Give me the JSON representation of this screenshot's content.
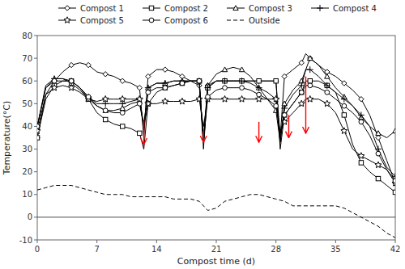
{
  "chart_data": {
    "type": "line",
    "x_label": "Compost time (d)",
    "y_label": "Temperature(°C)",
    "xlim": [
      0,
      42
    ],
    "ylim": [
      -10,
      80
    ],
    "xticks": [
      0,
      7,
      14,
      21,
      28,
      35,
      42
    ],
    "yticks": [
      -10,
      0,
      10,
      20,
      30,
      40,
      50,
      60,
      70,
      80
    ],
    "grid": false,
    "legend": "upper right",
    "reference_line": 0,
    "series": [
      {
        "name": "Compost 1",
        "color": "black",
        "marker": "diamond",
        "line_style": "solid",
        "x": [
          0,
          1,
          2,
          3,
          4,
          5,
          6,
          7,
          8,
          9,
          10,
          11,
          12,
          12.5,
          13,
          14,
          15,
          16,
          17,
          18,
          19,
          19.5,
          20,
          21,
          22,
          23,
          24,
          25,
          26,
          27,
          28,
          28.5,
          29,
          30,
          31,
          31.5,
          32,
          33,
          34,
          35,
          36,
          37,
          38,
          39,
          40,
          41,
          42
        ],
        "values": [
          35,
          54,
          60,
          64,
          67,
          68,
          67,
          64,
          63,
          62,
          60,
          59,
          57,
          35,
          62,
          65,
          65,
          64,
          62,
          60,
          58,
          35,
          58,
          60,
          60,
          60,
          60,
          60,
          60,
          60,
          60,
          35,
          62,
          65,
          68,
          72,
          70,
          67,
          64,
          62,
          59,
          56,
          52,
          45,
          35,
          25,
          15
        ]
      },
      {
        "name": "Compost 2",
        "color": "black",
        "marker": "square",
        "line_style": "solid",
        "x": [
          0,
          1,
          2,
          3,
          4,
          5,
          6,
          7,
          8,
          9,
          10,
          11,
          12,
          12.5,
          13,
          14,
          15,
          16,
          17,
          18,
          19,
          19.5,
          20,
          21,
          22,
          23,
          24,
          25,
          26,
          27,
          28,
          28.5,
          29,
          30,
          31,
          31.5,
          32,
          33,
          34,
          35,
          36,
          37,
          38,
          39,
          40,
          41,
          42
        ],
        "values": [
          35,
          52,
          58,
          60,
          60,
          57,
          52,
          46,
          43,
          41,
          40,
          39,
          37,
          30,
          50,
          55,
          57,
          58,
          59,
          60,
          60,
          30,
          57,
          60,
          60,
          60,
          60,
          60,
          60,
          60,
          60,
          30,
          45,
          50,
          55,
          60,
          60,
          60,
          58,
          55,
          45,
          32,
          24,
          20,
          17,
          14,
          11
        ]
      },
      {
        "name": "Compost 3",
        "color": "black",
        "marker": "triangle",
        "line_style": "solid",
        "x": [
          0,
          1,
          2,
          3,
          4,
          5,
          6,
          7,
          8,
          9,
          10,
          11,
          12,
          12.5,
          13,
          14,
          15,
          16,
          17,
          18,
          19,
          19.5,
          20,
          21,
          22,
          23,
          24,
          25,
          26,
          27,
          28,
          28.5,
          29,
          30,
          31,
          31.5,
          32,
          33,
          34,
          35,
          36,
          37,
          38,
          39,
          40,
          41,
          42
        ],
        "values": [
          40,
          57,
          61,
          61,
          59,
          56,
          52,
          49,
          47,
          47,
          48,
          50,
          51,
          40,
          57,
          59,
          59,
          60,
          60,
          60,
          60,
          33,
          58,
          63,
          65,
          66,
          65,
          62,
          57,
          52,
          47,
          33,
          50,
          56,
          60,
          65,
          70,
          67,
          62,
          57,
          53,
          49,
          44,
          40,
          37,
          35,
          38
        ]
      },
      {
        "name": "Compost 4",
        "color": "black",
        "marker": "plus",
        "line_style": "solid",
        "x": [
          0,
          1,
          2,
          3,
          4,
          5,
          6,
          7,
          8,
          9,
          10,
          11,
          12,
          12.5,
          13,
          14,
          15,
          16,
          17,
          18,
          19,
          19.5,
          20,
          21,
          22,
          23,
          24,
          25,
          26,
          27,
          28,
          28.5,
          29,
          30,
          31,
          31.5,
          32,
          33,
          34,
          35,
          36,
          37,
          38,
          39,
          40,
          41,
          42
        ],
        "values": [
          40,
          58,
          61,
          61,
          60,
          57,
          53,
          50,
          50,
          50,
          50,
          51,
          52,
          40,
          57,
          59,
          59,
          60,
          60,
          60,
          60,
          33,
          57,
          60,
          60,
          60,
          60,
          59,
          57,
          55,
          52,
          33,
          48,
          54,
          58,
          65,
          65,
          62,
          58,
          55,
          52,
          49,
          45,
          40,
          30,
          22,
          18
        ]
      },
      {
        "name": "Compost 5",
        "color": "black",
        "marker": "star",
        "line_style": "solid",
        "x": [
          0,
          1,
          2,
          3,
          4,
          5,
          6,
          7,
          8,
          9,
          10,
          11,
          12,
          12.5,
          13,
          14,
          15,
          16,
          17,
          18,
          19,
          19.5,
          20,
          21,
          22,
          23,
          24,
          25,
          26,
          27,
          28,
          28.5,
          29,
          30,
          31,
          31.5,
          32,
          33,
          34,
          35,
          36,
          37,
          38,
          39,
          40,
          41,
          42
        ],
        "values": [
          38,
          54,
          57,
          58,
          57,
          55,
          52,
          51,
          52,
          52,
          52,
          52,
          52,
          40,
          50,
          50,
          51,
          51,
          51,
          51,
          52,
          40,
          52,
          52,
          52,
          52,
          52,
          52,
          52,
          52,
          52,
          37,
          42,
          46,
          50,
          52,
          52,
          52,
          50,
          46,
          38,
          30,
          27,
          25,
          23,
          21,
          15
        ]
      },
      {
        "name": "Compost 6",
        "color": "black",
        "marker": "circle",
        "line_style": "solid",
        "x": [
          0,
          1,
          2,
          3,
          4,
          5,
          6,
          7,
          8,
          9,
          10,
          11,
          12,
          12.5,
          13,
          14,
          15,
          16,
          17,
          18,
          19,
          19.5,
          20,
          21,
          22,
          23,
          24,
          25,
          26,
          27,
          28,
          28.5,
          29,
          30,
          31,
          31.5,
          32,
          33,
          34,
          35,
          36,
          37,
          38,
          39,
          40,
          41,
          42
        ],
        "values": [
          40,
          57,
          60,
          60,
          60,
          57,
          53,
          49,
          47,
          46,
          46,
          48,
          50,
          40,
          55,
          57,
          57,
          58,
          59,
          60,
          60,
          33,
          53,
          56,
          57,
          57,
          57,
          56,
          54,
          52,
          49,
          37,
          45,
          50,
          55,
          58,
          58,
          57,
          55,
          52,
          49,
          46,
          42,
          36,
          28,
          21,
          16
        ]
      },
      {
        "name": "Outside",
        "color": "black",
        "marker": "none",
        "line_style": "dashed",
        "x": [
          0,
          1,
          2,
          3,
          4,
          5,
          6,
          7,
          8,
          9,
          10,
          11,
          12,
          13,
          14,
          15,
          16,
          17,
          18,
          19,
          20,
          21,
          22,
          23,
          24,
          25,
          26,
          27,
          28,
          29,
          30,
          31,
          32,
          33,
          34,
          35,
          36,
          37,
          38,
          39,
          40,
          41,
          42
        ],
        "values": [
          12,
          13,
          14,
          14,
          14,
          13,
          12,
          11,
          10,
          10,
          10,
          9,
          9,
          9,
          9,
          9,
          8,
          8,
          8,
          7,
          3,
          4,
          7,
          8,
          9,
          10,
          10,
          9,
          8,
          7,
          5,
          5,
          5,
          5,
          5,
          5,
          4,
          2,
          0,
          -2,
          -4,
          -7,
          -9
        ]
      }
    ],
    "arrows": {
      "color": "red",
      "x": [
        12.5,
        19.5,
        26.0,
        29.5,
        31.5
      ],
      "y_start": [
        43,
        38,
        42,
        45,
        62
      ],
      "y_end": [
        32,
        33,
        33,
        35,
        37
      ]
    }
  }
}
